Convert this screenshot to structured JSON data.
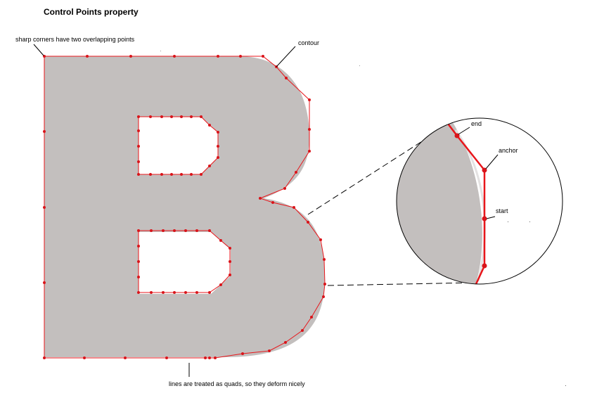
{
  "title": "Control Points property",
  "labels": {
    "sharp_corners": "sharp corners have two overlapping points",
    "contour": "contour",
    "lines_quads": "lines are treated as quads, so they deform nicely",
    "end": "end",
    "anchor": "anchor",
    "start": "start"
  },
  "colors": {
    "glyph_fill": "#c3bfbe",
    "contour": "#e8161b",
    "point": "#d9141a",
    "leader": "#000000"
  }
}
